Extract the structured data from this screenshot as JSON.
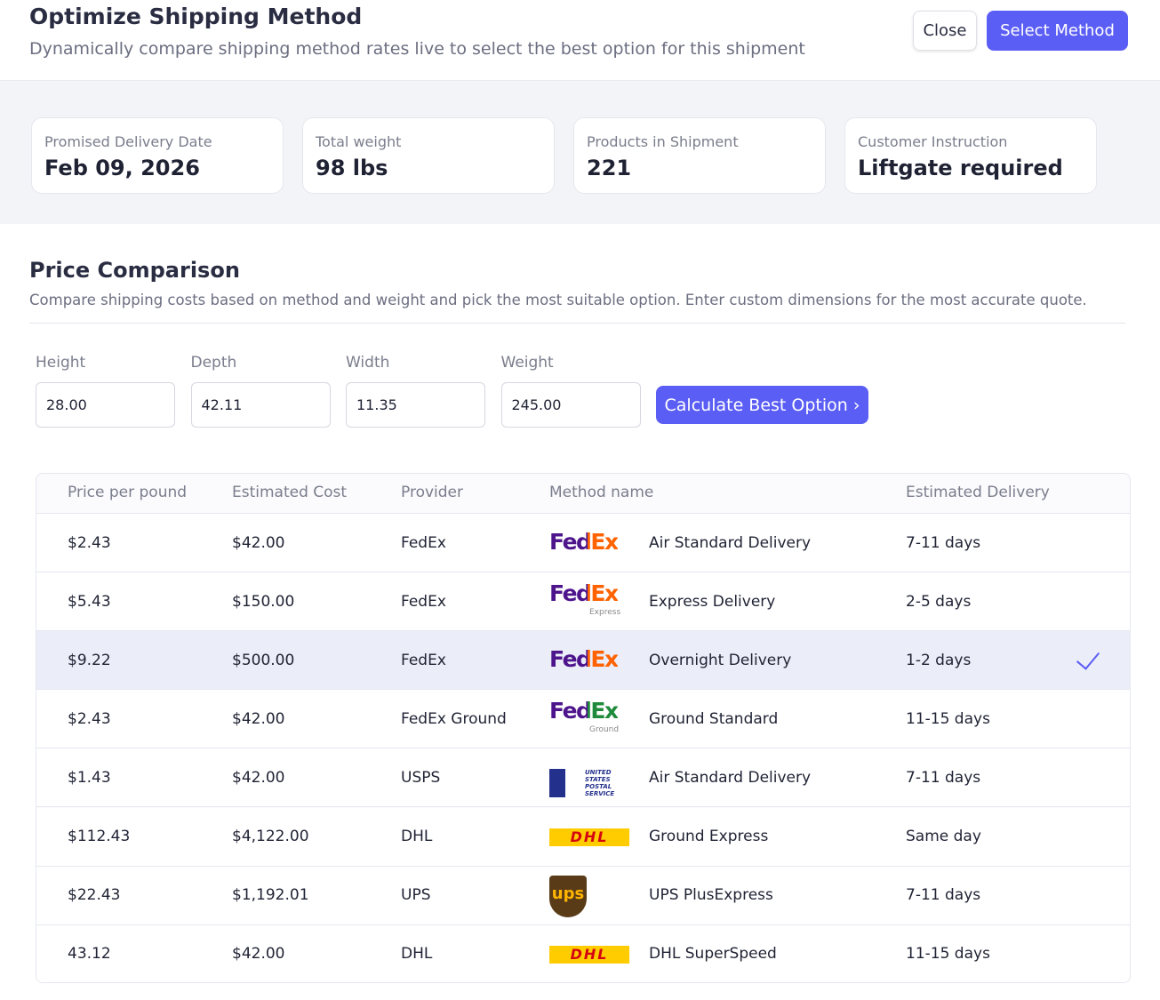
{
  "header": {
    "title": "Optimize Shipping Method",
    "subtitle": "Dynamically compare shipping method rates live to select the best option for this shipment",
    "buttons": [
      "Close",
      "Select Method"
    ]
  },
  "summary": [
    {
      "label": "Promised Delivery Date",
      "value": "Feb 09, 2026"
    },
    {
      "label": "Total weight",
      "value": "98 lbs"
    },
    {
      "label": "Products in Shipment",
      "value": "221"
    },
    {
      "label": "Customer Instruction",
      "value": "Liftgate required"
    }
  ],
  "comparison": {
    "title": "Price Comparison",
    "description": "Compare shipping costs based on method and weight and pick the most suitable option. Enter custom dimensions for the most accurate quote.",
    "inputs": [
      {
        "label": "Height",
        "value": "28.00"
      },
      {
        "label": "Depth",
        "value": "42.11"
      },
      {
        "label": "Width",
        "value": "11.35"
      },
      {
        "label": "Weight",
        "value": "245.00"
      }
    ],
    "button": "Calculate Best Option"
  },
  "table": {
    "columns": [
      "Price per pound",
      "Estimated Cost",
      "Provider",
      "Method name",
      "Estimated Delivery"
    ],
    "rows": [
      {
        "price": "$2.43",
        "cost": "$42.00",
        "provider": "FedEx",
        "logo": "FedEx",
        "method": "Air Standard Delivery",
        "delivery": "7-11 days"
      },
      {
        "price": "$5.43",
        "cost": "$150.00",
        "provider": "FedEx",
        "logo": "FedEx",
        "logo_sub": "Express",
        "method": "Express Delivery",
        "delivery": "2-5 days"
      },
      {
        "price": "$9.22",
        "cost": "$500.00",
        "provider": "FedEx",
        "logo": "FedEx",
        "method": "Overnight Delivery",
        "delivery": "1-2 days",
        "selected": true
      },
      {
        "price": "$2.43",
        "cost": "$42.00",
        "provider": "FedEx Ground",
        "logo": "FedEx",
        "logo_sub": "Ground",
        "method": "Ground Standard",
        "delivery": "11-15 days"
      },
      {
        "price": "$1.43",
        "cost": "$42.00",
        "provider": "USPS",
        "logo": "UNITED STATES POSTAL SERVICE",
        "method": "Air Standard Delivery",
        "delivery": "7-11 days"
      },
      {
        "price": "$112.43",
        "cost": "$4,122.00",
        "provider": "DHL",
        "logo": "DHL",
        "method": "Ground Express",
        "delivery": "Same day"
      },
      {
        "price": "$22.43",
        "cost": "$1,192.01",
        "provider": "UPS",
        "logo": "ups",
        "method": "UPS PlusExpress",
        "delivery": "7-11 days"
      },
      {
        "price": "43.12",
        "cost": "$42.00",
        "provider": "DHL",
        "logo": "DHL",
        "method": "DHL SuperSpeed",
        "delivery": "11-15 days"
      }
    ]
  }
}
